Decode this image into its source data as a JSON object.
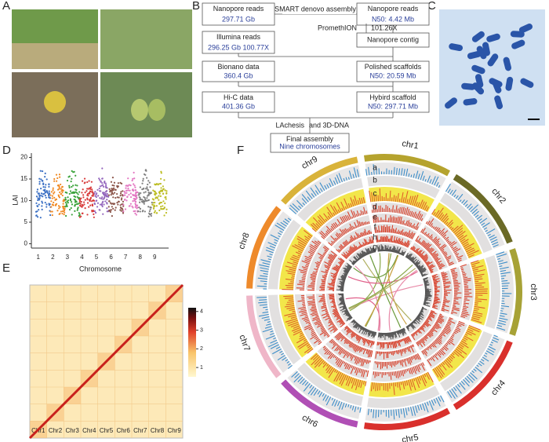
{
  "panel_labels": [
    "A",
    "B",
    "C",
    "D",
    "E",
    "F"
  ],
  "flowchart": {
    "nodes": [
      {
        "title": "Nanopore reads",
        "detail": "297.71 Gb"
      },
      {
        "title": "Nanopore reads",
        "detail": "N50: 4.42 Mb"
      },
      {
        "title": "Illumina reads",
        "detail": "296.25 Gb 100.77X"
      },
      {
        "title": "Nanopore contig"
      },
      {
        "title": "Bionano data",
        "detail": "360.4 Gb"
      },
      {
        "title": "Polished scaffolds",
        "detail": "N50: 20.59 Mb"
      },
      {
        "title": "Hi-C data",
        "detail": "401.36 Gb"
      },
      {
        "title": "Hybird scaffold",
        "detail": "N50: 297.71 Mb"
      },
      {
        "title": "Final assembly",
        "detail": "Nine chromosomes"
      }
    ],
    "edge_labels": [
      "SMART denovo assembly",
      "PromethION",
      "101.26X",
      "LAchesis",
      "and 3D-DNA"
    ]
  },
  "lai_plot": {
    "y_label": "LAI",
    "x_label": "Chromosome",
    "ylim": [
      -1,
      21
    ],
    "yticks": [
      0,
      5,
      10,
      15,
      20
    ],
    "categories": [
      "1",
      "2",
      "3",
      "4",
      "5",
      "6",
      "7",
      "8",
      "9"
    ],
    "colors": [
      "#3a6fc4",
      "#f08a24",
      "#3aa23a",
      "#d83a3a",
      "#9467bd",
      "#8c564b",
      "#e377c2",
      "#808080",
      "#bcbd22"
    ]
  },
  "hic_map": {
    "labels": [
      "Chr1",
      "Chr2",
      "Chr3",
      "Chr4",
      "Chr5",
      "Chr6",
      "Chr7",
      "Chr8",
      "Chr9"
    ],
    "colorbar_ticks": [
      1,
      2,
      3,
      4
    ]
  },
  "circos": {
    "chromosomes": [
      {
        "name": "chr1",
        "color": "#b5a32e"
      },
      {
        "name": "chr2",
        "color": "#6b6a26"
      },
      {
        "name": "chr3",
        "color": "#a7a236"
      },
      {
        "name": "chr4",
        "color": "#d9302c"
      },
      {
        "name": "chr5",
        "color": "#d9302c"
      },
      {
        "name": "chr6",
        "color": "#b04fb5"
      },
      {
        "name": "chr7",
        "color": "#efb6c8"
      },
      {
        "name": "chr8",
        "color": "#ee8a2b"
      },
      {
        "name": "chr9",
        "color": "#d9b33a"
      }
    ],
    "track_labels": [
      "a",
      "b",
      "c",
      "d",
      "e",
      "f",
      "h",
      "g"
    ]
  }
}
